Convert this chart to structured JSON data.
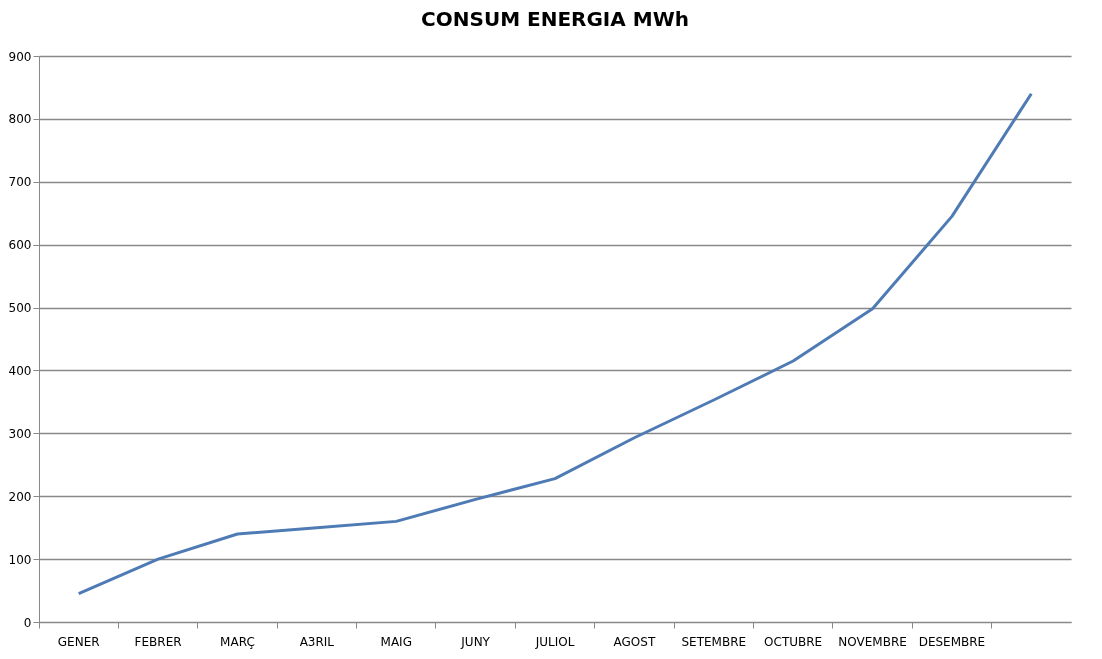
{
  "chart_data": {
    "type": "line",
    "title": "CONSUM ENERGIA  MWh",
    "categories": [
      "GENER",
      "FEBRER",
      "MARÇ",
      "A3RIL",
      "MAIG",
      "JUNY",
      "JULIOL",
      "AGOST",
      "SETEMBRE",
      "OCTUBRE",
      "NOVEMBRE",
      "DESEMBRE",
      null
    ],
    "series": [
      {
        "color": "#4f7bb5",
        "values": [
          45,
          100,
          140,
          150,
          160,
          195,
          228,
          293,
          353,
          415,
          498,
          645,
          840
        ]
      }
    ],
    "ylim": [
      0,
      900
    ],
    "yticks": [
      0,
      100,
      200,
      300,
      400,
      500,
      600,
      700,
      800,
      900
    ],
    "grid": "y",
    "marker": "none",
    "line_style": "solid"
  }
}
